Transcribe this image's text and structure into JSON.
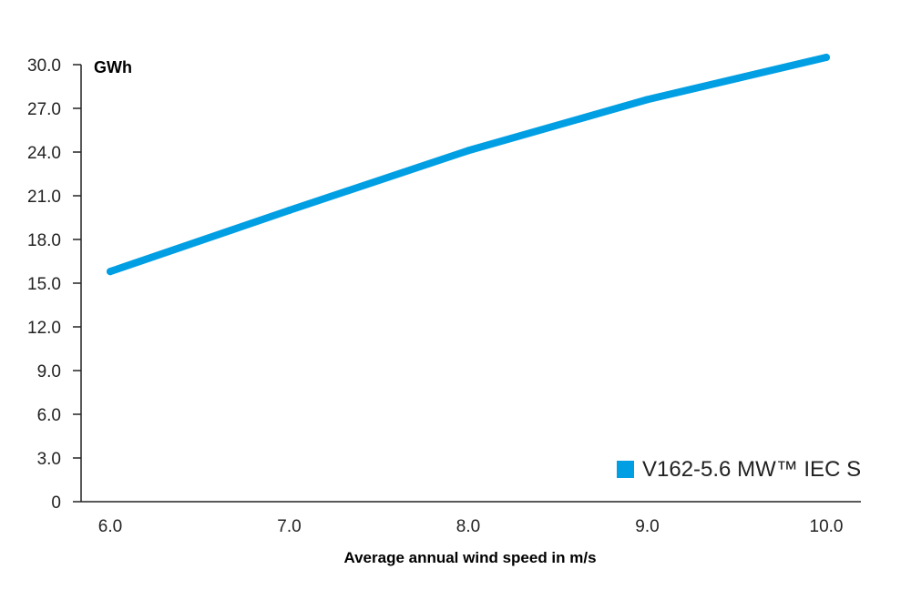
{
  "chart_data": {
    "type": "line",
    "title": "",
    "unit_label": "GWh",
    "xlabel": "Average annual wind speed in m/s",
    "ylabel": "",
    "x": [
      6.0,
      7.0,
      8.0,
      9.0,
      10.0
    ],
    "x_tick_labels": [
      "6.0",
      "7.0",
      "8.0",
      "9.0",
      "10.0"
    ],
    "y_ticks": [
      0,
      3,
      6,
      9,
      12,
      15,
      18,
      21,
      24,
      27,
      30
    ],
    "y_tick_labels": [
      "0",
      "3.0",
      "6.0",
      "9.0",
      "12.0",
      "15.0",
      "18.0",
      "21.0",
      "24.0",
      "27.0",
      "30.0"
    ],
    "ylim": [
      0,
      30
    ],
    "grid": false,
    "legend_position": "bottom-right",
    "series": [
      {
        "name": "V162-5.6 MW™ IEC S",
        "color": "#009FE3",
        "values": [
          15.8,
          20.0,
          24.1,
          27.6,
          30.5
        ]
      }
    ]
  }
}
